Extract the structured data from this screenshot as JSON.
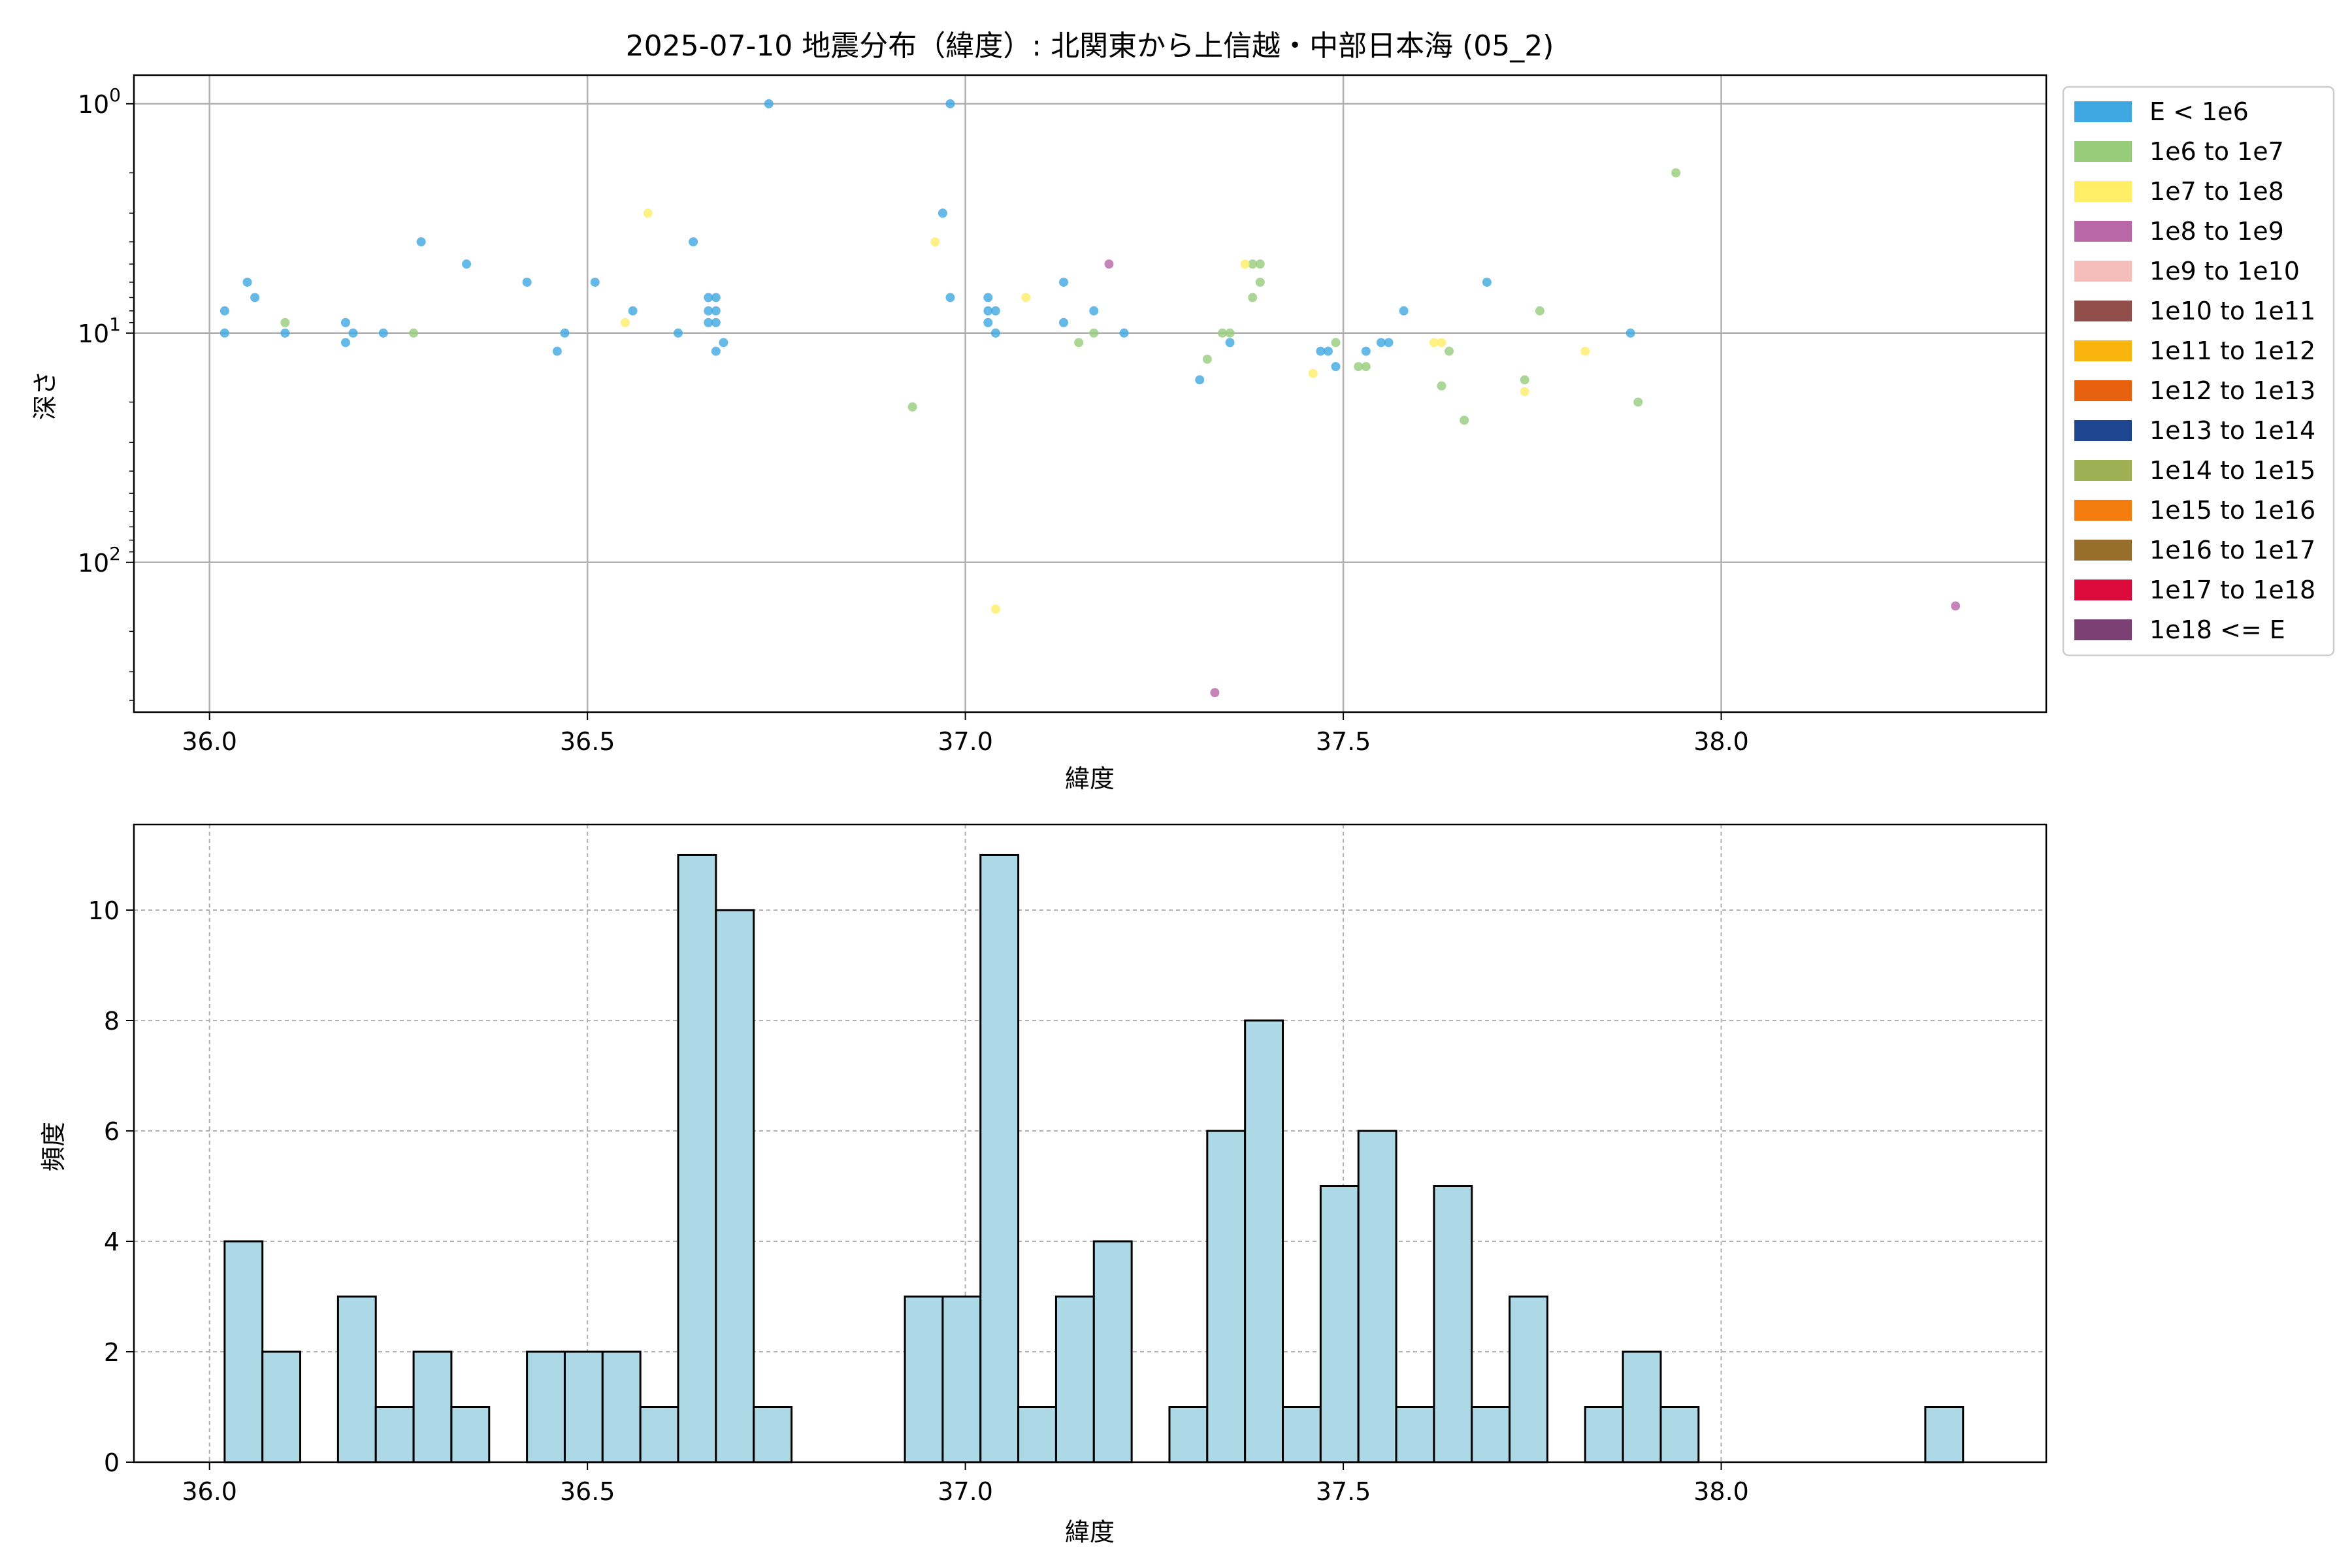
{
  "chart_data": [
    {
      "type": "scatter",
      "title": "2025-07-10 地震分布（緯度）: 北関東から上信越・中部日本海 (05_2)",
      "xlabel": "緯度",
      "ylabel": "深さ",
      "xlim": [
        35.9,
        38.43
      ],
      "ylim": [
        450,
        0.75
      ],
      "yscale": "log-inverted",
      "xticks": [
        "36.0",
        "36.5",
        "37.0",
        "37.5",
        "38.0"
      ],
      "yticks": [
        {
          "base": "10",
          "exp": "0"
        },
        {
          "base": "10",
          "exp": "1"
        },
        {
          "base": "10",
          "exp": "2"
        }
      ],
      "grid": true,
      "legend_position": "outside-right",
      "legend": [
        {
          "label": "E < 1e6",
          "color": "#3FA7E1"
        },
        {
          "label": "1e6 to 1e7",
          "color": "#97CC7A"
        },
        {
          "label": "1e7 to 1e8",
          "color": "#FFEE66"
        },
        {
          "label": "1e8 to 1e9",
          "color": "#B867A7"
        },
        {
          "label": "1e9 to 1e10",
          "color": "#F6BEBA"
        },
        {
          "label": "1e10 to 1e11",
          "color": "#914E4A"
        },
        {
          "label": "1e11 to 1e12",
          "color": "#F9B40E"
        },
        {
          "label": "1e12 to 1e13",
          "color": "#E8610E"
        },
        {
          "label": "1e13 to 1e14",
          "color": "#1E4690"
        },
        {
          "label": "1e14 to 1e15",
          "color": "#9EAF54"
        },
        {
          "label": "1e15 to 1e16",
          "color": "#F47C0E"
        },
        {
          "label": "1e16 to 1e17",
          "color": "#986E2D"
        },
        {
          "label": "1e17 to 1e18",
          "color": "#DC0A3B"
        },
        {
          "label": "1e18 <= E",
          "color": "#7B3F73"
        }
      ],
      "series": [
        {
          "color": "#3FA7E1",
          "points": [
            [
              36.02,
              10
            ],
            [
              36.02,
              8
            ],
            [
              36.05,
              6
            ],
            [
              36.06,
              7
            ],
            [
              36.1,
              10
            ],
            [
              36.18,
              9
            ],
            [
              36.18,
              11
            ],
            [
              36.19,
              10
            ],
            [
              36.23,
              10
            ],
            [
              36.28,
              4
            ],
            [
              36.34,
              5
            ],
            [
              36.42,
              6
            ],
            [
              36.46,
              12
            ],
            [
              36.47,
              10
            ],
            [
              36.51,
              6
            ],
            [
              36.56,
              8
            ],
            [
              36.62,
              10
            ],
            [
              36.64,
              4
            ],
            [
              36.66,
              7
            ],
            [
              36.66,
              8
            ],
            [
              36.66,
              9
            ],
            [
              36.67,
              7
            ],
            [
              36.67,
              8
            ],
            [
              36.67,
              9
            ],
            [
              36.67,
              12
            ],
            [
              36.68,
              11
            ],
            [
              36.74,
              1
            ],
            [
              36.97,
              3
            ],
            [
              36.98,
              1
            ],
            [
              36.98,
              7
            ],
            [
              37.03,
              7
            ],
            [
              37.03,
              8
            ],
            [
              37.03,
              9
            ],
            [
              37.04,
              8
            ],
            [
              37.04,
              10
            ],
            [
              37.13,
              6
            ],
            [
              37.13,
              9
            ],
            [
              37.17,
              8
            ],
            [
              37.21,
              10
            ],
            [
              37.31,
              16
            ],
            [
              37.35,
              11
            ],
            [
              37.47,
              12
            ],
            [
              37.48,
              12
            ],
            [
              37.49,
              14
            ],
            [
              37.53,
              12
            ],
            [
              37.55,
              11
            ],
            [
              37.56,
              11
            ],
            [
              37.58,
              8
            ],
            [
              37.69,
              6
            ],
            [
              37.88,
              10
            ]
          ]
        },
        {
          "color": "#97CC7A",
          "points": [
            [
              36.1,
              9
            ],
            [
              36.27,
              10
            ],
            [
              36.93,
              21
            ],
            [
              37.15,
              11
            ],
            [
              37.17,
              10
            ],
            [
              37.32,
              13
            ],
            [
              37.34,
              10
            ],
            [
              37.35,
              10
            ],
            [
              37.38,
              5
            ],
            [
              37.38,
              7
            ],
            [
              37.39,
              5
            ],
            [
              37.39,
              6
            ],
            [
              37.49,
              11
            ],
            [
              37.52,
              14
            ],
            [
              37.53,
              14
            ],
            [
              37.63,
              17
            ],
            [
              37.64,
              12
            ],
            [
              37.66,
              24
            ],
            [
              37.74,
              16
            ],
            [
              37.76,
              8
            ],
            [
              37.89,
              20
            ],
            [
              37.94,
              2
            ]
          ]
        },
        {
          "color": "#FFEE66",
          "points": [
            [
              36.55,
              9
            ],
            [
              36.58,
              3
            ],
            [
              36.96,
              4
            ],
            [
              37.04,
              160
            ],
            [
              37.08,
              7
            ],
            [
              37.37,
              5
            ],
            [
              37.46,
              15
            ],
            [
              37.62,
              11
            ],
            [
              37.63,
              11
            ],
            [
              37.74,
              18
            ],
            [
              37.82,
              12
            ]
          ]
        },
        {
          "color": "#B867A7",
          "points": [
            [
              37.19,
              5
            ],
            [
              37.33,
              370
            ],
            [
              38.31,
              155
            ]
          ]
        }
      ]
    },
    {
      "type": "bar",
      "title": "",
      "xlabel": "緯度",
      "ylabel": "頻度",
      "xlim": [
        35.9,
        38.43
      ],
      "ylim": [
        0,
        11.55
      ],
      "xticks": [
        "36.0",
        "36.5",
        "37.0",
        "37.5",
        "38.0"
      ],
      "yticks": [
        "0",
        "2",
        "4",
        "6",
        "8",
        "10"
      ],
      "grid": true,
      "bar_color": "#ADD8E6",
      "bins": [
        {
          "x0": 36.02,
          "x1": 36.07,
          "count": 4
        },
        {
          "x0": 36.07,
          "x1": 36.12,
          "count": 2
        },
        {
          "x0": 36.17,
          "x1": 36.22,
          "count": 3
        },
        {
          "x0": 36.22,
          "x1": 36.27,
          "count": 1
        },
        {
          "x0": 36.27,
          "x1": 36.32,
          "count": 2
        },
        {
          "x0": 36.32,
          "x1": 36.37,
          "count": 1
        },
        {
          "x0": 36.42,
          "x1": 36.47,
          "count": 2
        },
        {
          "x0": 36.47,
          "x1": 36.52,
          "count": 2
        },
        {
          "x0": 36.52,
          "x1": 36.57,
          "count": 2
        },
        {
          "x0": 36.57,
          "x1": 36.62,
          "count": 1
        },
        {
          "x0": 36.62,
          "x1": 36.67,
          "count": 11
        },
        {
          "x0": 36.67,
          "x1": 36.72,
          "count": 10
        },
        {
          "x0": 36.72,
          "x1": 36.77,
          "count": 1
        },
        {
          "x0": 36.92,
          "x1": 36.97,
          "count": 3
        },
        {
          "x0": 36.97,
          "x1": 37.02,
          "count": 3
        },
        {
          "x0": 37.02,
          "x1": 37.07,
          "count": 11
        },
        {
          "x0": 37.07,
          "x1": 37.12,
          "count": 1
        },
        {
          "x0": 37.12,
          "x1": 37.17,
          "count": 3
        },
        {
          "x0": 37.17,
          "x1": 37.22,
          "count": 4
        },
        {
          "x0": 37.27,
          "x1": 37.32,
          "count": 1
        },
        {
          "x0": 37.32,
          "x1": 37.37,
          "count": 6
        },
        {
          "x0": 37.37,
          "x1": 37.42,
          "count": 8
        },
        {
          "x0": 37.42,
          "x1": 37.47,
          "count": 1
        },
        {
          "x0": 37.47,
          "x1": 37.52,
          "count": 5
        },
        {
          "x0": 37.52,
          "x1": 37.57,
          "count": 6
        },
        {
          "x0": 37.57,
          "x1": 37.62,
          "count": 1
        },
        {
          "x0": 37.62,
          "x1": 37.67,
          "count": 5
        },
        {
          "x0": 37.67,
          "x1": 37.72,
          "count": 1
        },
        {
          "x0": 37.72,
          "x1": 37.77,
          "count": 3
        },
        {
          "x0": 37.82,
          "x1": 37.87,
          "count": 1
        },
        {
          "x0": 37.87,
          "x1": 37.92,
          "count": 2
        },
        {
          "x0": 37.92,
          "x1": 37.97,
          "count": 1
        },
        {
          "x0": 38.27,
          "x1": 38.32,
          "count": 1
        }
      ]
    }
  ]
}
